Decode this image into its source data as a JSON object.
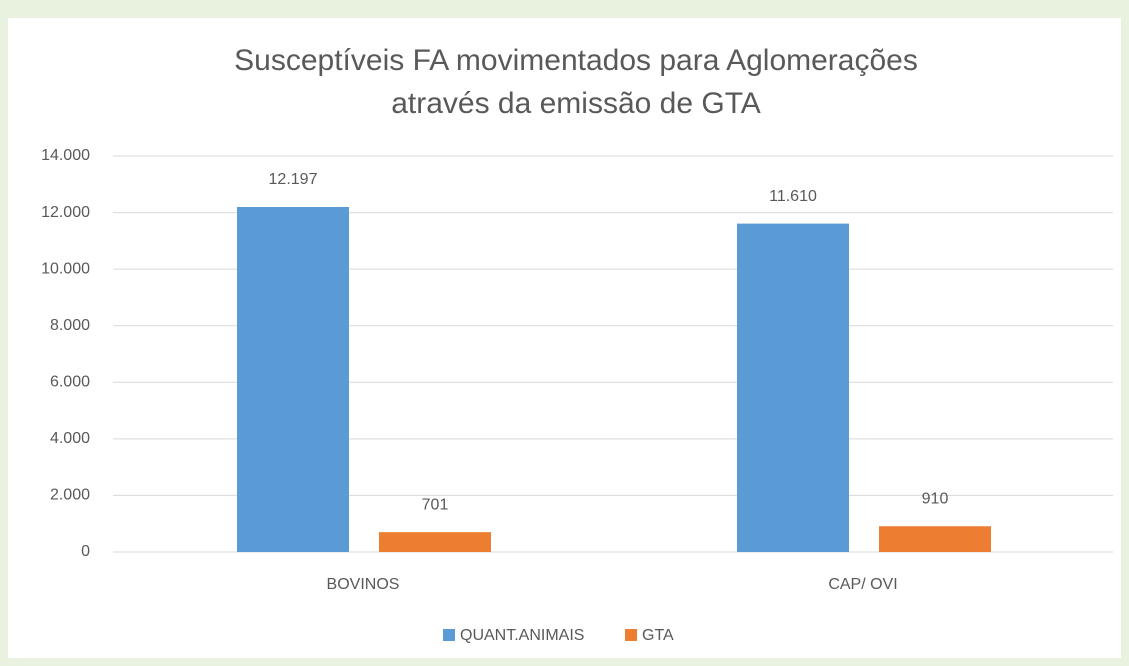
{
  "chart_data": {
    "type": "bar",
    "title": [
      "Susceptíveis FA movimentados para Aglomerações",
      "através da emissão de GTA"
    ],
    "categories": [
      "BOVINOS",
      "CAP/ OVI"
    ],
    "series": [
      {
        "name": "QUANT.ANIMAIS",
        "color": "#5b9bd5",
        "values": [
          12197,
          11610
        ],
        "value_labels": [
          "12.197",
          "11.610"
        ]
      },
      {
        "name": "GTA",
        "color": "#ed7d31",
        "values": [
          701,
          910
        ],
        "value_labels": [
          "701",
          "910"
        ]
      }
    ],
    "ylim": [
      0,
      14000
    ],
    "yticks": [
      0,
      {
        "value": 2000,
        "label": "2.000"
      },
      {
        "value": 4000,
        "label": "4.000"
      },
      {
        "value": 6000,
        "label": "6.000"
      },
      {
        "value": 8000,
        "label": "8.000"
      },
      {
        "value": 10000,
        "label": "10.000"
      },
      {
        "value": 12000,
        "label": "12.000"
      },
      {
        "value": 14000,
        "label": "14.000"
      }
    ],
    "grid": true,
    "legend": "bottom"
  }
}
